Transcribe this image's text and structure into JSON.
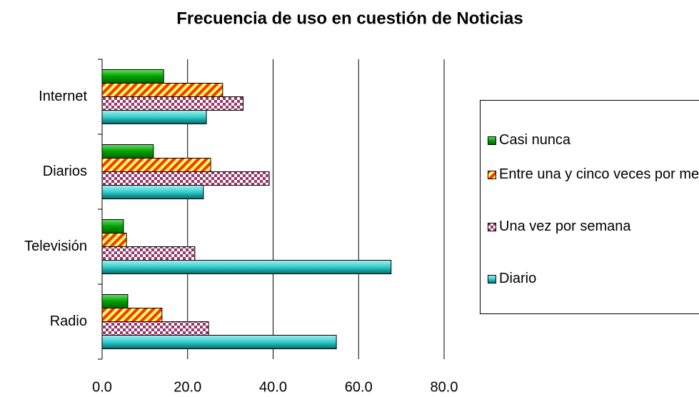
{
  "chart_data": {
    "type": "hbar",
    "title": "Frecuencia de uso en cuestión de Noticias",
    "categories": [
      "Radio",
      "Televisión",
      "Diarios",
      "Internet"
    ],
    "series": [
      {
        "name": "Casi nunca",
        "color": "#00a000",
        "values": [
          6.0,
          5.0,
          12.0,
          14.4
        ]
      },
      {
        "name": "Entre una y cinco veces por mes",
        "color": "#ff3300",
        "values": [
          14.0,
          5.7,
          25.4,
          28.2
        ]
      },
      {
        "name": "Una vez por semana",
        "color": "#993366",
        "values": [
          24.9,
          21.7,
          39.1,
          33.0
        ]
      },
      {
        "name": "Diario",
        "color": "#33cccc",
        "values": [
          54.8,
          67.6,
          23.7,
          24.4
        ]
      }
    ],
    "xlim": [
      0,
      80
    ],
    "xticks": [
      {
        "value": 0,
        "label": "0.0"
      },
      {
        "value": 20,
        "label": "20.0"
      },
      {
        "value": 40,
        "label": "40.0"
      },
      {
        "value": 60,
        "label": "60.0"
      },
      {
        "value": 80,
        "label": "80.0"
      }
    ],
    "grid": true,
    "legend": "right"
  }
}
